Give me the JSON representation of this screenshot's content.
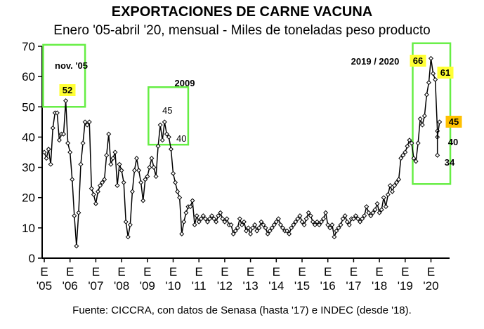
{
  "header": {
    "title": "EXPORTACIONES DE CARNE VACUNA",
    "subtitle": "Enero '05-abril '20, mensual - Miles de toneladas peso producto"
  },
  "footer": {
    "source": "Fuente: CICCRA, con datos de Senasa (hasta '17) e INDEC (desde '18)."
  },
  "colors": {
    "line": "#000000",
    "box": "#66ee44",
    "highlight_yellow": "#ffff33",
    "highlight_orange": "#ffc000"
  },
  "chart_data": {
    "type": "line",
    "title": "EXPORTACIONES DE CARNE VACUNA",
    "subtitle": "Enero '05-abril '20, mensual - Miles de toneladas peso producto",
    "xlabel": "",
    "ylabel": "",
    "ylim": [
      0,
      70
    ],
    "yticks": [
      "0",
      "10",
      "20",
      "30",
      "40",
      "50",
      "60",
      "70"
    ],
    "x_start": "2005-01",
    "x_end": "2020-04",
    "xticks": [
      {
        "top": "E",
        "bottom": "'05"
      },
      {
        "top": "E",
        "bottom": "'06"
      },
      {
        "top": "E",
        "bottom": "'07"
      },
      {
        "top": "E",
        "bottom": "'08"
      },
      {
        "top": "E",
        "bottom": "'09"
      },
      {
        "top": "E",
        "bottom": "'10"
      },
      {
        "top": "E",
        "bottom": "'11"
      },
      {
        "top": "E",
        "bottom": "'12"
      },
      {
        "top": "E",
        "bottom": "'13"
      },
      {
        "top": "E",
        "bottom": "'14"
      },
      {
        "top": "E",
        "bottom": "'15"
      },
      {
        "top": "E",
        "bottom": "'16"
      },
      {
        "top": "E",
        "bottom": "'17"
      },
      {
        "top": "E",
        "bottom": "'18"
      },
      {
        "top": "E",
        "bottom": "'19"
      },
      {
        "top": "E",
        "bottom": "'20"
      }
    ],
    "grid": false,
    "legend": "none",
    "series": [
      {
        "marker": "diamond",
        "values": [
          35,
          33,
          36,
          31,
          43,
          48,
          48,
          39,
          41,
          41,
          52,
          38,
          35,
          26,
          14,
          4,
          15,
          31,
          38,
          45,
          44,
          45,
          23,
          21,
          18,
          22,
          24,
          25,
          26,
          34,
          41,
          31,
          33,
          35,
          24,
          31,
          29,
          25,
          12,
          7,
          11,
          22,
          29,
          33,
          29,
          25,
          19,
          26,
          27,
          30,
          33,
          30,
          27,
          37,
          44,
          39,
          45,
          41,
          40,
          36,
          28,
          25,
          22,
          20,
          8,
          12,
          15,
          17,
          17,
          19,
          11,
          14,
          12,
          13,
          14,
          13,
          12,
          13,
          14,
          13,
          12,
          14,
          15,
          13,
          12,
          13,
          11,
          11,
          8,
          9,
          10,
          13,
          11,
          12,
          9,
          10,
          8,
          10,
          11,
          9,
          10,
          12,
          11,
          10,
          8,
          9,
          10,
          11,
          12,
          13,
          11,
          10,
          9,
          9,
          8,
          10,
          11,
          12,
          13,
          14,
          12,
          11,
          13,
          15,
          14,
          12,
          11,
          12,
          11,
          12,
          13,
          15,
          11,
          10,
          11,
          7,
          9,
          10,
          11,
          13,
          14,
          12,
          11,
          13,
          13,
          14,
          13,
          12,
          13,
          14,
          17,
          15,
          14,
          15,
          16,
          18,
          15,
          16,
          20,
          17,
          21,
          24,
          22,
          24,
          25,
          26,
          33,
          34,
          35,
          37,
          39,
          38,
          33,
          32,
          38,
          46,
          44,
          47,
          54,
          58,
          66,
          61,
          59,
          42
        ]
      },
      {
        "marker": "diamond",
        "values": [
          40,
          45
        ]
      },
      {
        "marker": "diamond",
        "values": [
          34
        ]
      }
    ],
    "annotations": [
      {
        "text": "nov. '05",
        "style": "bold"
      },
      {
        "text": "52",
        "style": "bold",
        "highlight": "yellow"
      },
      {
        "text": "2009",
        "style": "bold"
      },
      {
        "text": "45",
        "style": "normal"
      },
      {
        "text": "40",
        "style": "normal"
      },
      {
        "text": "2019 / 2020",
        "style": "bold"
      },
      {
        "text": "66",
        "style": "bold",
        "highlight": "yellow"
      },
      {
        "text": "61",
        "style": "bold",
        "highlight": "yellow"
      },
      {
        "text": "45",
        "style": "bold",
        "highlight": "orange"
      },
      {
        "text": "40",
        "style": "bold"
      },
      {
        "text": "34",
        "style": "bold"
      }
    ]
  }
}
